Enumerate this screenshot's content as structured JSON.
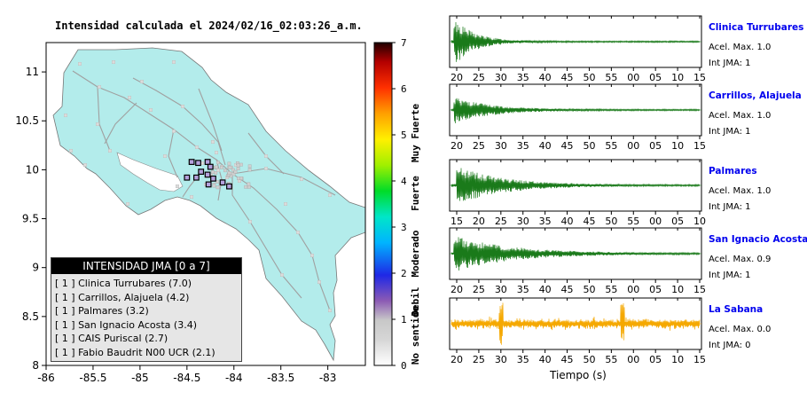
{
  "map": {
    "title": "Intensidad calculada el 2024/02/16_02:03:26_a.m.",
    "x_ticks": [
      "-86",
      "-85.5",
      "-85",
      "-84.5",
      "-84",
      "-83.5",
      "-83"
    ],
    "y_ticks": [
      "11",
      "10.5",
      "10",
      "9.5",
      "9",
      "8.5",
      "8"
    ],
    "land_color": "#b3eceb",
    "sea_color": "#ffffff",
    "legend": {
      "title": "INTENSIDAD JMA [0 a 7]",
      "items": [
        "[ 1 ]  Clinica Turrubares (7.0)",
        "[ 1 ]  Carrillos, Alajuela (4.2)",
        "[ 1 ]  Palmares (3.2)",
        "[ 1 ]  San Ignacio Acosta (3.4)",
        "[ 1 ]  CAIS Puriscal (2.7)",
        "[ 1 ]  Fabio Baudrit N00 UCR (2.1)"
      ]
    }
  },
  "colorbar": {
    "ticks": [
      "7",
      "6",
      "5",
      "4",
      "3",
      "2",
      "1",
      "0"
    ],
    "labels": [
      "Muy Fuerte",
      "Fuerte",
      "Moderado",
      "Debil",
      "No sentido"
    ]
  },
  "chart_data": [
    {
      "type": "scatter",
      "title": "Intensidad calculada el 2024/02/16_02:03:26_a.m.",
      "xlabel": "",
      "ylabel": "",
      "xlim": [
        -86,
        -82.6
      ],
      "ylim": [
        8,
        11.3
      ],
      "stations": [
        {
          "x": -84.45,
          "y": 10.08,
          "intensity": 1
        },
        {
          "x": -84.38,
          "y": 10.07,
          "intensity": 1
        },
        {
          "x": -84.28,
          "y": 10.08,
          "intensity": 1
        },
        {
          "x": -84.25,
          "y": 10.03,
          "intensity": 1
        },
        {
          "x": -84.35,
          "y": 9.98,
          "intensity": 1
        },
        {
          "x": -84.28,
          "y": 9.95,
          "intensity": 1
        },
        {
          "x": -84.22,
          "y": 9.91,
          "intensity": 1
        },
        {
          "x": -84.5,
          "y": 9.92,
          "intensity": 1
        },
        {
          "x": -84.4,
          "y": 9.92,
          "intensity": 1
        },
        {
          "x": -84.12,
          "y": 9.87,
          "intensity": 1
        },
        {
          "x": -84.27,
          "y": 9.85,
          "intensity": 1
        },
        {
          "x": -84.05,
          "y": 9.83,
          "intensity": 1
        }
      ]
    },
    {
      "type": "line",
      "station": "Clinica Turrubares",
      "accel_max": "Acel. Max. 1.0",
      "int_jma": "Int JMA: 1",
      "color": "#1a7a1a",
      "x_ticks": [
        "20",
        "25",
        "30",
        "35",
        "40",
        "45",
        "50",
        "55",
        "00",
        "05",
        "10",
        "15"
      ],
      "amplitude": 1.0,
      "onset_fraction": 0.01,
      "decay": 0.08
    },
    {
      "type": "line",
      "station": "Carrillos, Alajuela",
      "accel_max": "Acel. Max. 1.0",
      "int_jma": "Int JMA: 1",
      "color": "#1a7a1a",
      "x_ticks": [
        "20",
        "25",
        "30",
        "35",
        "40",
        "45",
        "50",
        "55",
        "00",
        "05",
        "10",
        "15"
      ],
      "amplitude": 0.55,
      "onset_fraction": 0.01,
      "decay": 0.14
    },
    {
      "type": "line",
      "station": "Palmares",
      "accel_max": "Acel. Max. 1.0",
      "int_jma": "Int JMA: 1",
      "color": "#1a7a1a",
      "x_ticks": [
        "15",
        "20",
        "25",
        "30",
        "35",
        "40",
        "45",
        "50",
        "55",
        "00",
        "05",
        "10"
      ],
      "amplitude": 0.8,
      "onset_fraction": 0.02,
      "decay": 0.18
    },
    {
      "type": "line",
      "station": "San Ignacio Acosta",
      "accel_max": "Acel. Max. 0.9",
      "int_jma": "Int JMA: 1",
      "color": "#1a7a1a",
      "x_ticks": [
        "20",
        "25",
        "30",
        "35",
        "40",
        "45",
        "50",
        "55",
        "00",
        "05",
        "10",
        "15"
      ],
      "amplitude": 0.75,
      "onset_fraction": 0.01,
      "decay": 0.22
    },
    {
      "type": "line",
      "station": "La Sabana",
      "accel_max": "Acel. Max. 0.0",
      "int_jma": "Int JMA: 0",
      "color": "#f5a800",
      "x_ticks": [
        "20",
        "25",
        "30",
        "35",
        "40",
        "45",
        "50",
        "55",
        "00",
        "05",
        "10",
        "15"
      ],
      "xlabel": "Tiempo (s)",
      "amplitude": 0.35,
      "onset_fraction": 0.0,
      "decay": 2.0
    }
  ]
}
